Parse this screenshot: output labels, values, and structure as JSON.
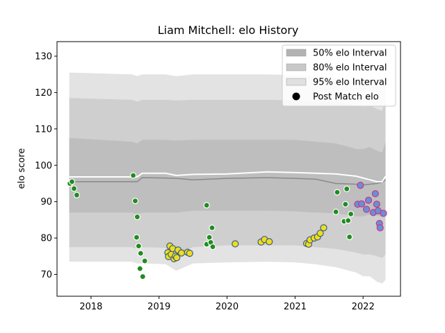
{
  "chart_data": {
    "type": "scatter",
    "title": "Liam Mitchell: elo History",
    "xlabel": "",
    "ylabel": "elo score",
    "xlim": [
      2017.5,
      2022.55
    ],
    "ylim": [
      64,
      134
    ],
    "x_ticks": [
      2018,
      2019,
      2020,
      2021,
      2022
    ],
    "y_ticks": [
      70,
      80,
      90,
      100,
      110,
      120,
      130
    ],
    "x_tick_labels": [
      "2018",
      "2019",
      "2020",
      "2021",
      "2022"
    ],
    "y_tick_labels": [
      "70",
      "80",
      "90",
      "100",
      "110",
      "120",
      "130"
    ],
    "grid": false,
    "legend": {
      "placement": "top-right",
      "entries": [
        {
          "label": "50% elo Interval",
          "color": "#b3b3b3"
        },
        {
          "label": "80% elo Interval",
          "color": "#c8c8c8"
        },
        {
          "label": "95% elo Interval",
          "color": "#e0e0e0"
        },
        {
          "label": "Post Match elo",
          "color": "#000000"
        }
      ]
    },
    "colors": {
      "band50": "#bebebe",
      "band80": "#cfcfcf",
      "band95": "#e3e3e3",
      "mean_line": "#ffffff",
      "median_line": "#888888"
    },
    "bands": {
      "x": [
        2017.68,
        2018.6,
        2018.68,
        2018.75,
        2019.1,
        2019.25,
        2019.5,
        2020.0,
        2020.6,
        2021.0,
        2021.3,
        2021.6,
        2021.9,
        2022.0,
        2022.1,
        2022.2,
        2022.28,
        2022.33
      ],
      "mean": [
        96.8,
        96.8,
        96.8,
        97.8,
        97.8,
        97.2,
        97.5,
        97.6,
        98.2,
        98.0,
        97.8,
        97.6,
        97.0,
        96.5,
        96.0,
        95.5,
        95.5,
        97.0
      ],
      "median": [
        95.5,
        95.5,
        95.5,
        96.6,
        96.5,
        96.4,
        96.0,
        96.4,
        96.6,
        96.4,
        96.2,
        95.0,
        94.8,
        94.6,
        94.8,
        95.0,
        95.4,
        96.0
      ],
      "p50_low": [
        87.0,
        87.0,
        86.5,
        87.0,
        87.0,
        87.0,
        87.5,
        87.5,
        87.5,
        87.3,
        87.0,
        86.8,
        86.0,
        86.0,
        86.5,
        86.2,
        85.8,
        86.0
      ],
      "p50_high": [
        107.5,
        106.5,
        106.0,
        107.0,
        107.0,
        106.8,
        107.0,
        107.0,
        107.0,
        107.0,
        106.5,
        106.0,
        104.5,
        104.5,
        105.0,
        104.0,
        103.5,
        106.5
      ],
      "p80_low": [
        77.5,
        77.5,
        77.0,
        77.5,
        77.3,
        75.5,
        77.5,
        78.0,
        78.0,
        78.0,
        77.5,
        77.0,
        76.0,
        75.5,
        75.5,
        75.0,
        74.5,
        75.5
      ],
      "p80_high": [
        118.5,
        118.0,
        117.5,
        118.0,
        118.0,
        117.8,
        118.0,
        118.0,
        118.0,
        117.8,
        117.5,
        117.2,
        116.5,
        116.0,
        116.5,
        115.5,
        115.0,
        118.0
      ],
      "p95_low": [
        73.5,
        73.5,
        73.0,
        73.0,
        72.8,
        71.0,
        73.0,
        73.3,
        73.5,
        73.3,
        72.8,
        72.0,
        70.5,
        69.5,
        69.5,
        68.0,
        67.5,
        68.5
      ],
      "p95_high": [
        125.5,
        125.0,
        124.5,
        125.0,
        125.0,
        124.5,
        125.0,
        125.0,
        125.0,
        124.8,
        124.5,
        124.0,
        123.0,
        122.5,
        123.0,
        122.0,
        121.5,
        125.5
      ]
    },
    "series": [
      {
        "color": "#228b22",
        "edge": "#ffffff",
        "points": [
          [
            2017.69,
            95.0
          ],
          [
            2017.72,
            95.5
          ],
          [
            2017.75,
            93.6
          ],
          [
            2017.79,
            91.8
          ],
          [
            2018.62,
            97.2
          ],
          [
            2018.65,
            90.2
          ],
          [
            2018.68,
            85.8
          ],
          [
            2018.67,
            80.2
          ],
          [
            2018.7,
            77.8
          ],
          [
            2018.73,
            75.8
          ],
          [
            2018.72,
            71.6
          ],
          [
            2018.76,
            69.4
          ],
          [
            2018.79,
            73.7
          ],
          [
            2019.7,
            89.0
          ],
          [
            2019.7,
            78.3
          ],
          [
            2019.74,
            80.2
          ],
          [
            2019.76,
            78.8
          ],
          [
            2019.78,
            82.8
          ],
          [
            2019.79,
            77.6
          ],
          [
            2021.62,
            92.6
          ],
          [
            2021.6,
            87.2
          ],
          [
            2021.72,
            84.6
          ],
          [
            2021.74,
            89.3
          ],
          [
            2021.76,
            93.5
          ],
          [
            2021.78,
            84.8
          ],
          [
            2021.8,
            80.3
          ],
          [
            2021.82,
            86.6
          ]
        ]
      },
      {
        "color": "#f0dd1a",
        "edge": "#3a5f8a",
        "points": [
          [
            2019.13,
            76.0
          ],
          [
            2019.14,
            74.9
          ],
          [
            2019.16,
            77.8
          ],
          [
            2019.18,
            75.5
          ],
          [
            2019.2,
            77.1
          ],
          [
            2019.22,
            74.3
          ],
          [
            2019.24,
            75.0
          ],
          [
            2019.26,
            74.6
          ],
          [
            2019.28,
            76.7
          ],
          [
            2019.33,
            75.9
          ],
          [
            2019.42,
            76.1
          ],
          [
            2019.45,
            75.8
          ],
          [
            2020.12,
            78.4
          ],
          [
            2020.5,
            78.9
          ],
          [
            2020.55,
            79.6
          ],
          [
            2020.62,
            79.0
          ],
          [
            2021.17,
            78.5
          ],
          [
            2021.2,
            78.3
          ],
          [
            2021.22,
            79.5
          ],
          [
            2021.28,
            80.0
          ],
          [
            2021.33,
            80.3
          ],
          [
            2021.37,
            81.3
          ],
          [
            2021.42,
            82.8
          ]
        ]
      },
      {
        "color": "#6a8fd6",
        "edge": "#c0398a",
        "points": [
          [
            2021.92,
            89.3
          ],
          [
            2021.96,
            94.5
          ],
          [
            2021.98,
            89.4
          ],
          [
            2022.05,
            87.9
          ],
          [
            2022.08,
            90.4
          ],
          [
            2022.15,
            87.0
          ],
          [
            2022.18,
            92.2
          ],
          [
            2022.2,
            89.3
          ],
          [
            2022.22,
            87.5
          ],
          [
            2022.24,
            84.0
          ],
          [
            2022.25,
            82.8
          ],
          [
            2022.3,
            86.8
          ]
        ]
      }
    ]
  }
}
